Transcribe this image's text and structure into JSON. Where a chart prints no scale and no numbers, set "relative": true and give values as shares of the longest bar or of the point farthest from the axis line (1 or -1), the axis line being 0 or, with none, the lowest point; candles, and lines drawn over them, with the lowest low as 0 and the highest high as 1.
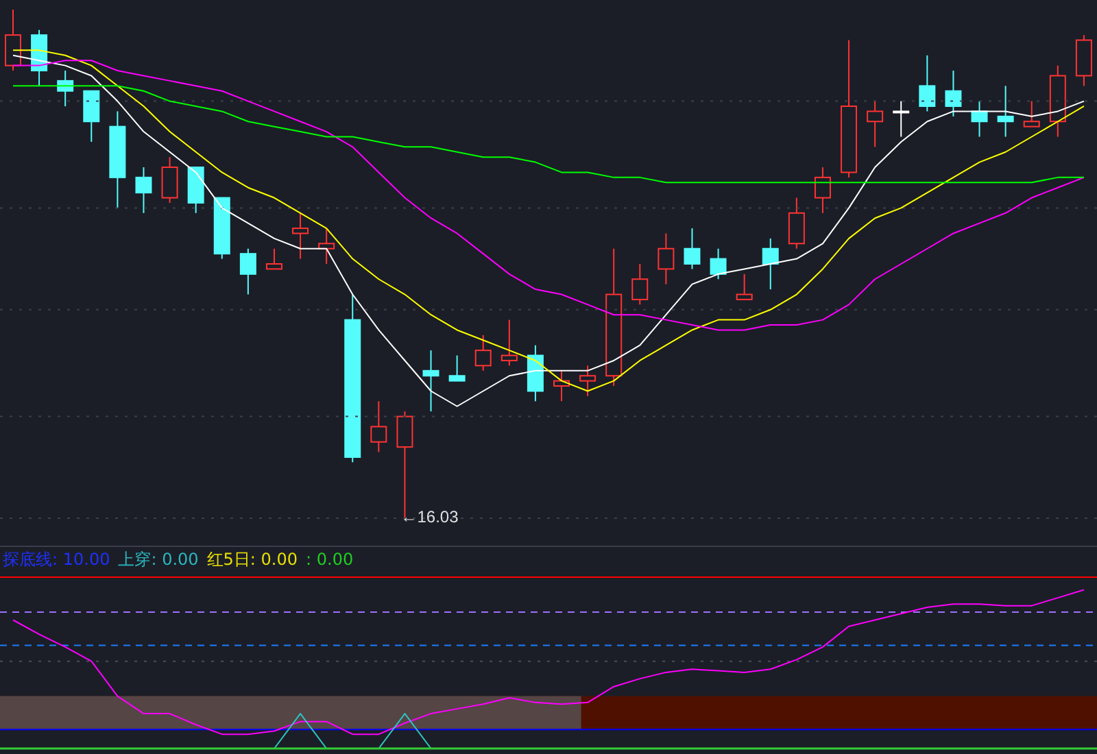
{
  "chart_data": [
    {
      "type": "candlestick",
      "relative": true,
      "categories": [
        null,
        null,
        null,
        null,
        null,
        null,
        null,
        null,
        null,
        null,
        null,
        null,
        null,
        null,
        null,
        null,
        null,
        null,
        null,
        null,
        null,
        null,
        null,
        null,
        null,
        null,
        null,
        null,
        null,
        null,
        null,
        null,
        null,
        null,
        null,
        null,
        null,
        null,
        null,
        null,
        null,
        null
      ],
      "ohlc": [
        [
          0.89,
          1.0,
          0.88,
          0.95
        ],
        [
          0.95,
          0.96,
          0.85,
          0.88
        ],
        [
          0.86,
          0.88,
          0.81,
          0.84
        ],
        [
          0.84,
          0.84,
          0.74,
          0.78
        ],
        [
          0.77,
          0.8,
          0.61,
          0.67
        ],
        [
          0.67,
          0.69,
          0.6,
          0.64
        ],
        [
          0.63,
          0.71,
          0.62,
          0.69
        ],
        [
          0.69,
          0.69,
          0.6,
          0.62
        ],
        [
          0.63,
          0.63,
          0.51,
          0.52
        ],
        [
          0.52,
          0.53,
          0.44,
          0.48
        ],
        [
          0.49,
          0.53,
          0.49,
          0.5
        ],
        [
          0.56,
          0.6,
          0.51,
          0.57
        ],
        [
          0.53,
          0.57,
          0.5,
          0.54
        ],
        [
          0.39,
          0.44,
          0.11,
          0.12
        ],
        [
          0.15,
          0.23,
          0.13,
          0.18
        ],
        [
          0.14,
          0.21,
          0.0,
          0.2
        ],
        [
          0.29,
          0.33,
          0.21,
          0.28
        ],
        [
          0.28,
          0.32,
          0.27,
          0.27
        ],
        [
          0.3,
          0.36,
          0.29,
          0.33
        ],
        [
          0.31,
          0.39,
          0.3,
          0.32
        ],
        [
          0.32,
          0.34,
          0.23,
          0.25
        ],
        [
          0.26,
          0.29,
          0.23,
          0.27
        ],
        [
          0.27,
          0.3,
          0.24,
          0.28
        ],
        [
          0.28,
          0.53,
          0.26,
          0.44
        ],
        [
          0.43,
          0.5,
          0.42,
          0.47
        ],
        [
          0.49,
          0.56,
          0.46,
          0.53
        ],
        [
          0.53,
          0.57,
          0.49,
          0.5
        ],
        [
          0.51,
          0.53,
          0.47,
          0.48
        ],
        [
          0.43,
          0.48,
          0.43,
          0.44
        ],
        [
          0.53,
          0.55,
          0.45,
          0.5
        ],
        [
          0.54,
          0.63,
          0.53,
          0.6
        ],
        [
          0.63,
          0.69,
          0.6,
          0.67
        ],
        [
          0.68,
          0.94,
          0.67,
          0.81
        ],
        [
          0.78,
          0.82,
          0.73,
          0.8
        ],
        [
          0.8,
          0.82,
          0.75,
          0.8
        ],
        [
          0.85,
          0.91,
          0.8,
          0.81
        ],
        [
          0.84,
          0.88,
          0.79,
          0.81
        ],
        [
          0.8,
          0.82,
          0.75,
          0.78
        ],
        [
          0.79,
          0.85,
          0.75,
          0.78
        ],
        [
          0.77,
          0.82,
          0.77,
          0.78
        ],
        [
          0.78,
          0.89,
          0.75,
          0.87
        ],
        [
          0.87,
          0.95,
          0.85,
          0.94
        ]
      ],
      "colors": [
        "#ff3333",
        "#54fcfc",
        "#54fcfc",
        "#54fcfc",
        "#54fcfc",
        "#54fcfc",
        "#ff3333",
        "#54fcfc",
        "#54fcfc",
        "#54fcfc",
        "#ff3333",
        "#ff3333",
        "#ff3333",
        "#54fcfc",
        "#ff3333",
        "#ff3333",
        "#54fcfc",
        "#54fcfc",
        "#ff3333",
        "#ff3333",
        "#54fcfc",
        "#ff3333",
        "#ff3333",
        "#ff3333",
        "#ff3333",
        "#ff3333",
        "#54fcfc",
        "#54fcfc",
        "#ff3333",
        "#54fcfc",
        "#ff3333",
        "#ff3333",
        "#ff3333",
        "#ff3333",
        "#ffffff",
        "#54fcfc",
        "#54fcfc",
        "#54fcfc",
        "#54fcfc",
        "#ff3333",
        "#ff3333",
        "#ff3333"
      ],
      "series": [
        {
          "type": "line",
          "color": "#ffffff",
          "values": [
            0.91,
            0.9,
            0.89,
            0.87,
            0.82,
            0.76,
            0.72,
            0.68,
            0.61,
            0.58,
            0.55,
            0.53,
            0.53,
            0.44,
            0.37,
            0.31,
            0.25,
            0.22,
            0.25,
            0.28,
            0.29,
            0.29,
            0.29,
            0.31,
            0.34,
            0.4,
            0.46,
            0.48,
            0.49,
            0.5,
            0.51,
            0.54,
            0.61,
            0.69,
            0.74,
            0.78,
            0.8,
            0.8,
            0.8,
            0.79,
            0.8,
            0.82
          ]
        },
        {
          "type": "line",
          "color": "#ffff00",
          "values": [
            0.92,
            0.92,
            0.91,
            0.89,
            0.85,
            0.81,
            0.76,
            0.72,
            0.68,
            0.65,
            0.63,
            0.6,
            0.57,
            0.51,
            0.47,
            0.44,
            0.4,
            0.37,
            0.35,
            0.33,
            0.31,
            0.27,
            0.25,
            0.27,
            0.31,
            0.34,
            0.37,
            0.39,
            0.39,
            0.41,
            0.44,
            0.49,
            0.55,
            0.59,
            0.61,
            0.64,
            0.67,
            0.7,
            0.72,
            0.75,
            0.78,
            0.81
          ]
        },
        {
          "type": "line",
          "color": "#ff00ff",
          "values": [
            0.89,
            0.89,
            0.9,
            0.9,
            0.88,
            0.87,
            0.86,
            0.85,
            0.84,
            0.82,
            0.8,
            0.78,
            0.76,
            0.73,
            0.68,
            0.63,
            0.59,
            0.56,
            0.52,
            0.48,
            0.45,
            0.44,
            0.42,
            0.4,
            0.4,
            0.39,
            0.38,
            0.37,
            0.37,
            0.38,
            0.38,
            0.39,
            0.42,
            0.47,
            0.5,
            0.53,
            0.56,
            0.58,
            0.6,
            0.63,
            0.65,
            0.67
          ]
        },
        {
          "type": "line",
          "color": "#00ff00",
          "values": [
            0.85,
            0.85,
            0.85,
            0.85,
            0.85,
            0.84,
            0.82,
            0.81,
            0.8,
            0.78,
            0.77,
            0.76,
            0.75,
            0.75,
            0.74,
            0.73,
            0.73,
            0.72,
            0.71,
            0.71,
            0.7,
            0.68,
            0.68,
            0.67,
            0.67,
            0.66,
            0.66,
            0.66,
            0.66,
            0.66,
            0.66,
            0.66,
            0.66,
            0.66,
            0.66,
            0.66,
            0.66,
            0.66,
            0.66,
            0.66,
            0.67,
            0.67
          ]
        }
      ],
      "ref_lines": [
        {
          "axis": "y",
          "value": 0.82,
          "color": "#3c4048",
          "line_style": "dotted"
        },
        {
          "axis": "y",
          "value": 0.61,
          "color": "#3c4048",
          "line_style": "dotted"
        },
        {
          "axis": "y",
          "value": 0.41,
          "color": "#3c4048",
          "line_style": "dotted"
        },
        {
          "axis": "y",
          "value": 0.2,
          "color": "#3c4048",
          "line_style": "dotted"
        },
        {
          "axis": "y",
          "value": 0,
          "color": "#3c4048",
          "line_style": "dotted"
        }
      ],
      "annotations": [
        {
          "text": "←16.03",
          "y": 0
        }
      ]
    },
    {
      "type": "line",
      "relative": true,
      "categories": [
        null,
        null,
        null,
        null,
        null,
        null,
        null,
        null,
        null,
        null,
        null,
        null,
        null,
        null,
        null,
        null,
        null,
        null,
        null,
        null,
        null,
        null,
        null,
        null,
        null,
        null,
        null,
        null,
        null,
        null,
        null,
        null,
        null,
        null,
        null,
        null,
        null,
        null,
        null,
        null,
        null,
        null
      ],
      "series": [
        {
          "type": "line",
          "color": "#ff00ff",
          "values": [
            0.81,
            0.72,
            0.64,
            0.55,
            0.33,
            0.22,
            0.22,
            0.15,
            0.09,
            0.09,
            0.11,
            0.17,
            0.17,
            0.09,
            0.09,
            0.16,
            0.22,
            0.25,
            0.28,
            0.32,
            0.29,
            0.28,
            0.29,
            0.39,
            0.44,
            0.48,
            0.5,
            0.49,
            0.48,
            0.5,
            0.56,
            0.64,
            0.77,
            0.81,
            0.85,
            0.89,
            0.91,
            0.91,
            0.9,
            0.9,
            0.95,
            1.0
          ]
        },
        {
          "type": "line",
          "color": "#2fc4c4",
          "values": [
            null,
            null,
            null,
            null,
            null,
            null,
            null,
            null,
            null,
            null,
            0,
            0.22,
            0,
            null,
            0,
            0.22,
            0,
            null,
            null,
            null,
            null,
            null,
            null,
            null,
            null,
            null,
            null,
            null,
            null,
            null,
            null,
            null,
            null,
            null,
            null,
            null,
            null,
            null,
            null,
            null,
            null,
            null
          ]
        }
      ],
      "ref_lines": [
        {
          "axis": "y",
          "value": 1.08,
          "color": "#ff0000",
          "line_style": "solid"
        },
        {
          "axis": "y",
          "value": 0.86,
          "color": "#a070ff",
          "line_style": "dashed"
        },
        {
          "axis": "y",
          "value": 0.65,
          "color": "#1e7cff",
          "line_style": "dashed"
        },
        {
          "axis": "y",
          "value": 0.55,
          "color": "#4a4e56",
          "line_style": "dotted"
        },
        {
          "axis": "y",
          "value": 0.12,
          "color": "#0000ff",
          "line_style": "solid"
        }
      ],
      "bands": [
        {
          "axis": "y",
          "from": 0.12,
          "to": 0.33,
          "color": "#501000"
        }
      ],
      "annotations": [
        "探底线: 10.00",
        "上穿: 0.00",
        "红5日: 0.00",
        ": 0.00"
      ]
    }
  ]
}
